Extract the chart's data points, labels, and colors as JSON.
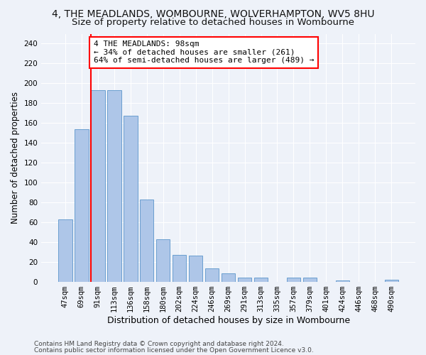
{
  "title": "4, THE MEADLANDS, WOMBOURNE, WOLVERHAMPTON, WV5 8HU",
  "subtitle": "Size of property relative to detached houses in Wombourne",
  "xlabel": "Distribution of detached houses by size in Wombourne",
  "ylabel": "Number of detached properties",
  "bar_labels": [
    "47sqm",
    "69sqm",
    "91sqm",
    "113sqm",
    "136sqm",
    "158sqm",
    "180sqm",
    "202sqm",
    "224sqm",
    "246sqm",
    "269sqm",
    "291sqm",
    "313sqm",
    "335sqm",
    "357sqm",
    "379sqm",
    "401sqm",
    "424sqm",
    "446sqm",
    "468sqm",
    "490sqm"
  ],
  "bar_values": [
    63,
    154,
    193,
    193,
    167,
    83,
    43,
    27,
    26,
    13,
    8,
    4,
    4,
    0,
    4,
    4,
    0,
    1,
    0,
    0,
    2
  ],
  "bar_color": "#aec6e8",
  "bar_edge_color": "#6a9fd0",
  "red_line_index": 2,
  "annotation_line1": "4 THE MEADLANDS: 98sqm",
  "annotation_line2": "← 34% of detached houses are smaller (261)",
  "annotation_line3": "64% of semi-detached houses are larger (489) →",
  "footer1": "Contains HM Land Registry data © Crown copyright and database right 2024.",
  "footer2": "Contains public sector information licensed under the Open Government Licence v3.0.",
  "ylim": [
    0,
    250
  ],
  "yticks": [
    0,
    20,
    40,
    60,
    80,
    100,
    120,
    140,
    160,
    180,
    200,
    220,
    240
  ],
  "bg_color": "#eef2f9",
  "grid_color": "#ffffff",
  "title_fontsize": 10,
  "subtitle_fontsize": 9.5,
  "xlabel_fontsize": 9,
  "ylabel_fontsize": 8.5,
  "tick_fontsize": 7.5,
  "annotation_fontsize": 8,
  "footer_fontsize": 6.5
}
